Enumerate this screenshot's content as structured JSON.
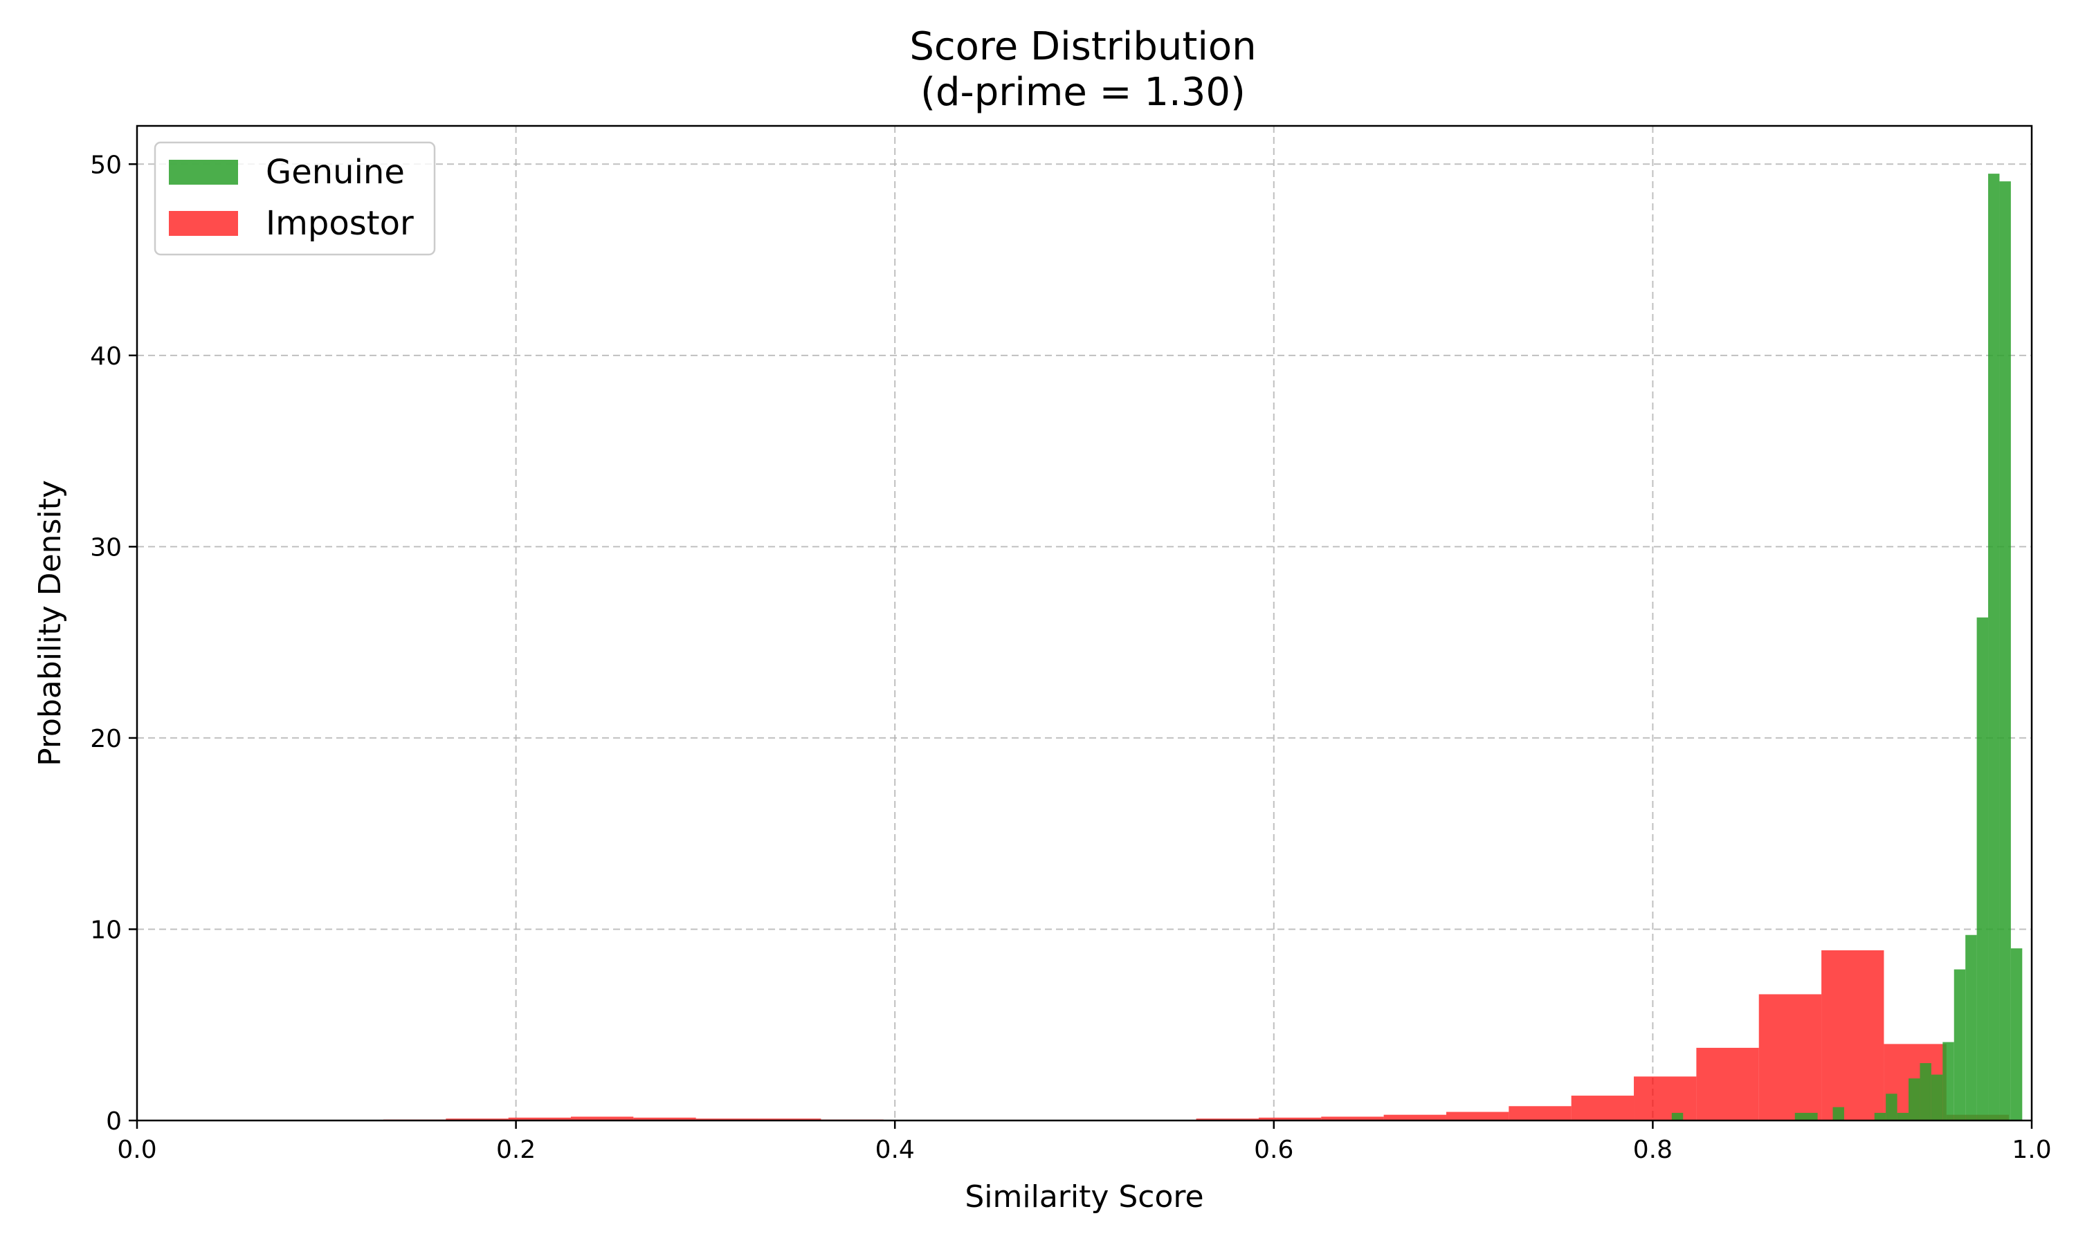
{
  "chart_data": {
    "type": "bar",
    "title": "Score Distribution",
    "subtitle": "(d-prime = 1.30)",
    "xlabel": "Similarity Score",
    "ylabel": "Probability Density",
    "xlim": [
      0.0,
      1.0
    ],
    "ylim": [
      0,
      52
    ],
    "xticks": [
      0.0,
      0.2,
      0.4,
      0.6,
      0.8,
      1.0
    ],
    "xtick_labels": [
      "0.0",
      "0.2",
      "0.4",
      "0.6",
      "0.8",
      "1.0"
    ],
    "yticks": [
      0,
      10,
      20,
      30,
      40,
      50
    ],
    "ytick_labels": [
      "0",
      "10",
      "20",
      "30",
      "40",
      "50"
    ],
    "grid": true,
    "legend_position": "top-left",
    "series": [
      {
        "name": "Genuine",
        "color": "#2ca02c",
        "opacity": 0.85,
        "bins": [
          [
            0.81,
            0.816,
            0.4
          ],
          [
            0.875,
            0.887,
            0.4
          ],
          [
            0.895,
            0.901,
            0.7
          ],
          [
            0.917,
            0.923,
            0.4
          ],
          [
            0.923,
            0.929,
            1.4
          ],
          [
            0.929,
            0.935,
            0.4
          ],
          [
            0.935,
            0.941,
            2.2
          ],
          [
            0.941,
            0.947,
            3.0
          ],
          [
            0.947,
            0.953,
            2.4
          ],
          [
            0.953,
            0.959,
            4.1
          ],
          [
            0.959,
            0.965,
            7.9
          ],
          [
            0.965,
            0.971,
            9.7
          ],
          [
            0.971,
            0.977,
            26.3
          ],
          [
            0.977,
            0.983,
            49.5
          ],
          [
            0.983,
            0.989,
            49.1
          ],
          [
            0.989,
            0.995,
            9.0
          ]
        ]
      },
      {
        "name": "Impostor",
        "color": "#ff0000",
        "opacity": 0.7,
        "bins": [
          [
            0.13,
            0.163,
            0.05
          ],
          [
            0.163,
            0.196,
            0.1
          ],
          [
            0.196,
            0.229,
            0.15
          ],
          [
            0.229,
            0.262,
            0.2
          ],
          [
            0.262,
            0.295,
            0.15
          ],
          [
            0.295,
            0.328,
            0.1
          ],
          [
            0.328,
            0.361,
            0.1
          ],
          [
            0.361,
            0.394,
            0.05
          ],
          [
            0.559,
            0.592,
            0.1
          ],
          [
            0.592,
            0.625,
            0.15
          ],
          [
            0.625,
            0.658,
            0.2
          ],
          [
            0.658,
            0.691,
            0.3
          ],
          [
            0.691,
            0.724,
            0.45
          ],
          [
            0.724,
            0.757,
            0.75
          ],
          [
            0.757,
            0.79,
            1.3
          ],
          [
            0.79,
            0.823,
            2.3
          ],
          [
            0.823,
            0.856,
            3.8
          ],
          [
            0.856,
            0.889,
            6.6
          ],
          [
            0.889,
            0.922,
            8.9
          ],
          [
            0.922,
            0.955,
            4.0
          ],
          [
            0.955,
            0.988,
            0.3
          ]
        ]
      }
    ]
  }
}
